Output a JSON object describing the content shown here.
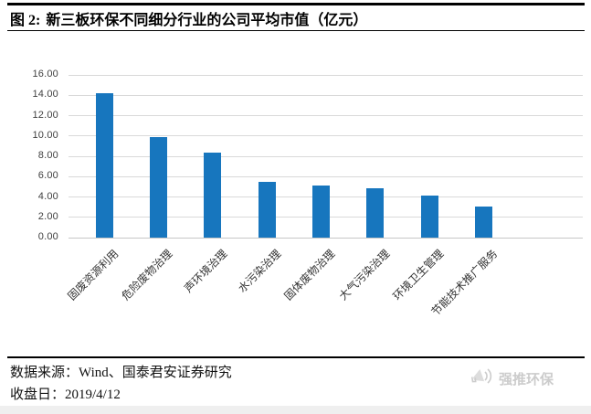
{
  "figure": {
    "title_prefix": "图 2:",
    "title_text": "新三板环保不同细分行业的公司平均市值（亿元）"
  },
  "chart_data": {
    "type": "bar",
    "title": "新三板环保不同细分行业的公司平均市值（亿元）",
    "categories": [
      "固废资源利用",
      "危险废物治理",
      "声环境治理",
      "水污染治理",
      "固体废物治理",
      "大气污染治理",
      "环境卫生管理",
      "节能技术推广服务"
    ],
    "values": [
      14.2,
      9.9,
      8.4,
      5.5,
      5.1,
      4.9,
      4.1,
      3.1
    ],
    "xlabel": "",
    "ylabel": "",
    "ylim": [
      0,
      16
    ],
    "ytick_step": 2,
    "ytick_format_decimals": 2,
    "grid": true,
    "legend": false,
    "bar_color": "#1776be",
    "x_label_rotation_deg": 45
  },
  "footer": {
    "source_label": "数据来源：",
    "source_value": "Wind、国泰君安证券研究",
    "close_label": "收盘日：",
    "close_value": "2019/4/12"
  },
  "watermark": {
    "label": "强推环保",
    "icon": "megaphone-icon"
  }
}
